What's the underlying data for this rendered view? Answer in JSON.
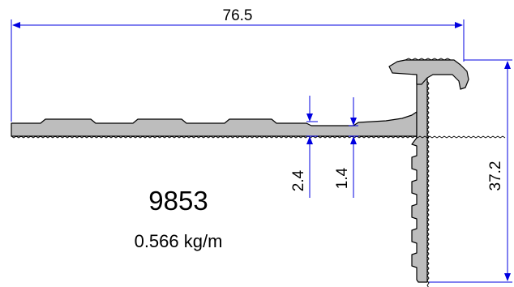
{
  "profile": {
    "part_number": "9853",
    "weight": "0.566 kg/m"
  },
  "dimensions": {
    "overall_width": "76.5",
    "overall_height": "37.2",
    "flange_thickness": "2.4",
    "web_thickness": "1.4"
  },
  "colors": {
    "dimension_line": "#0000e0",
    "profile_fill": "#bdbdbd",
    "profile_outline": "#000000",
    "text": "#000000"
  }
}
